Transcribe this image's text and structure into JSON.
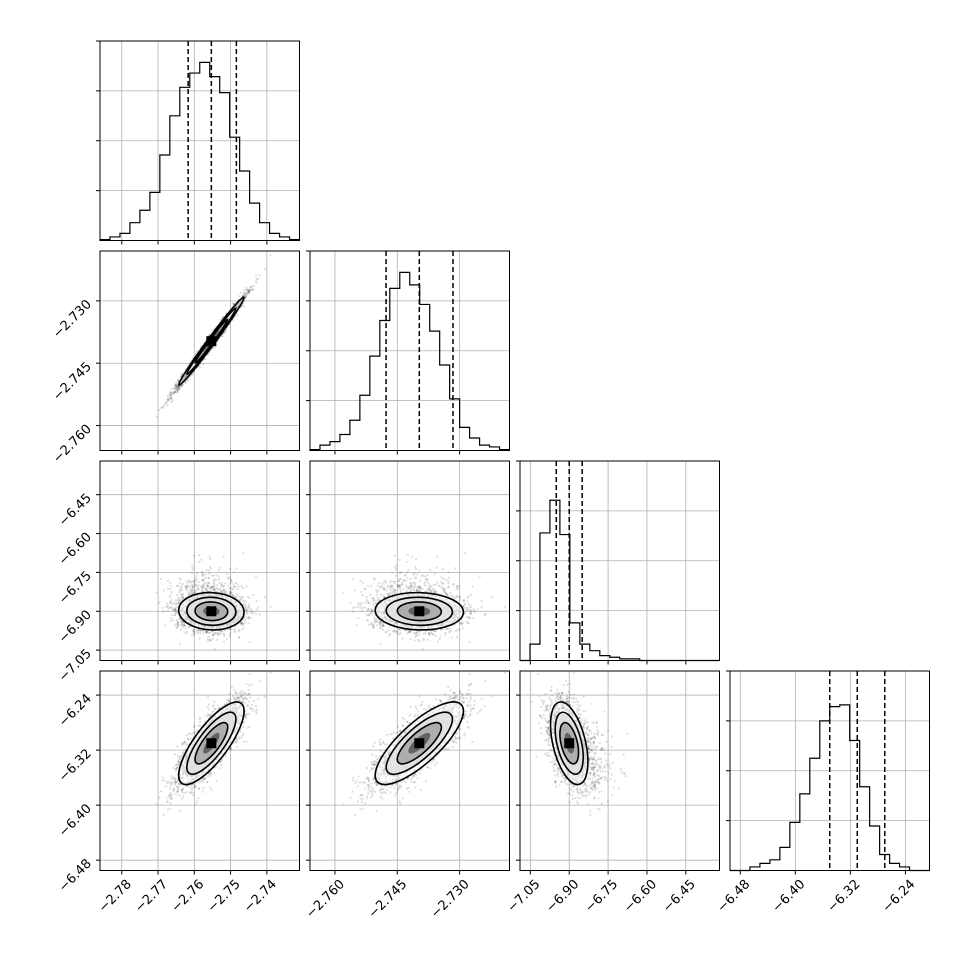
{
  "chart_data": {
    "type": "corner",
    "title": "",
    "parameter_labels": [
      "",
      "",
      "",
      ""
    ],
    "grid": true,
    "color": "#000000",
    "ranges": [
      [
        -2.786,
        -2.731
      ],
      [
        -2.766,
        -2.718
      ],
      [
        -7.09,
        -6.32
      ],
      [
        -6.495,
        -6.205
      ]
    ],
    "ticks": [
      [
        -2.78,
        -2.77,
        -2.76,
        -2.75,
        -2.74
      ],
      [
        -2.76,
        -2.745,
        -2.73
      ],
      [
        -7.05,
        -6.9,
        -6.75,
        -6.6,
        -6.45
      ],
      [
        -6.48,
        -6.4,
        -6.32,
        -6.24
      ]
    ],
    "tick_labels": [
      [
        "−2.78",
        "−2.77",
        "−2.76",
        "−2.75",
        "−2.74"
      ],
      [
        "−2.760",
        "−2.745",
        "−2.730"
      ],
      [
        "−7.05",
        "−6.90",
        "−6.75",
        "−6.60",
        "−6.45"
      ],
      [
        "−6.48",
        "−6.40",
        "−6.32",
        "−6.24"
      ]
    ],
    "quantiles": [
      [
        -2.7617,
        -2.7553,
        -2.7484
      ],
      [
        -2.7477,
        -2.7397,
        -2.7316
      ],
      [
        -6.95,
        -6.9,
        -6.85
      ],
      [
        -6.35,
        -6.31,
        -6.27
      ]
    ],
    "histograms": [
      [
        0.005,
        0.02,
        0.04,
        0.1,
        0.17,
        0.27,
        0.48,
        0.7,
        0.86,
        0.94,
        1.0,
        0.92,
        0.83,
        0.58,
        0.39,
        0.21,
        0.1,
        0.04,
        0.02,
        0.005
      ],
      [
        0.005,
        0.03,
        0.05,
        0.09,
        0.17,
        0.31,
        0.53,
        0.73,
        0.91,
        1.0,
        0.93,
        0.82,
        0.67,
        0.48,
        0.29,
        0.13,
        0.07,
        0.03,
        0.02,
        0.005
      ],
      [
        0.0,
        0.1,
        0.78,
        0.98,
        0.77,
        0.23,
        0.1,
        0.06,
        0.03,
        0.02,
        0.01,
        0.01,
        0.0,
        0.0,
        0.0,
        0.0,
        0.0,
        0.0,
        0.0,
        0.0
      ],
      [
        0.0,
        0.0,
        0.02,
        0.04,
        0.06,
        0.13,
        0.27,
        0.43,
        0.63,
        0.84,
        0.92,
        0.93,
        0.73,
        0.47,
        0.25,
        0.09,
        0.04,
        0.02,
        0.0,
        0.0
      ]
    ],
    "hist_ymax": [
      1.12,
      1.12,
      1.22,
      1.12
    ],
    "gaussian": {
      "mean": [
        -2.7553,
        -2.7397,
        -6.9,
        -6.31
      ],
      "std": [
        0.0045,
        0.0053,
        0.036,
        0.03
      ],
      "corr": [
        [
          1.0,
          0.99,
          -0.05,
          0.78
        ],
        [
          0.99,
          1.0,
          -0.05,
          0.78
        ],
        [
          -0.05,
          -0.05,
          1.0,
          -0.45
        ],
        [
          0.78,
          0.78,
          -0.45,
          1.0
        ]
      ]
    }
  }
}
